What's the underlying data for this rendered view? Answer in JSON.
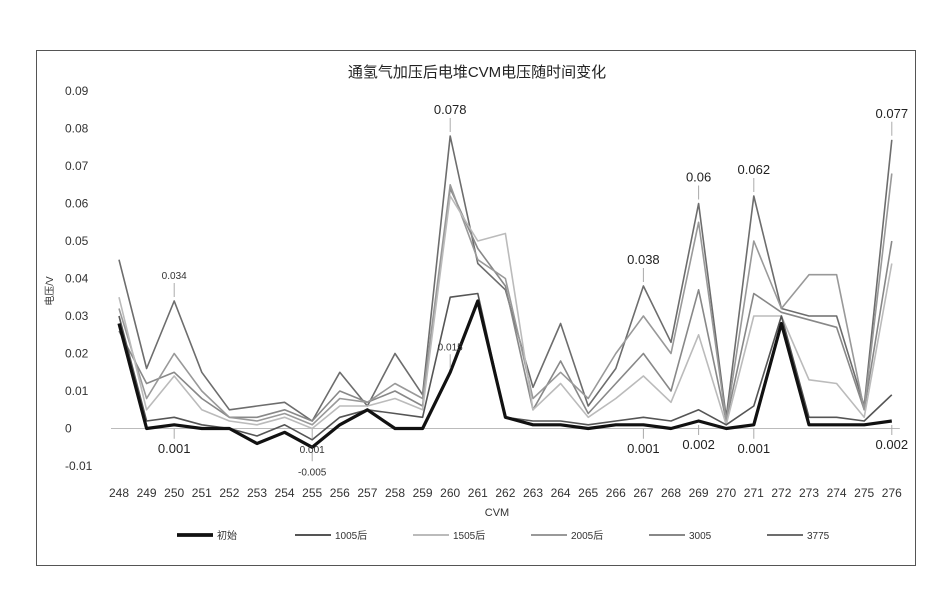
{
  "chart_data": {
    "type": "line",
    "title": "通氢气加压后电堆CVM电压随时间变化",
    "xlabel": "CVM",
    "ylabel": "电压/V",
    "ylim": [
      -0.01,
      0.09
    ],
    "yticks": [
      "-0.01",
      "0",
      "0.01",
      "0.02",
      "0.03",
      "0.04",
      "0.05",
      "0.06",
      "0.07",
      "0.08",
      "0.09"
    ],
    "categories": [
      "248",
      "249",
      "250",
      "251",
      "252",
      "253",
      "254",
      "255",
      "256",
      "257",
      "258",
      "259",
      "260",
      "261",
      "262",
      "263",
      "264",
      "265",
      "266",
      "267",
      "268",
      "269",
      "270",
      "271",
      "272",
      "273",
      "274",
      "275",
      "276"
    ],
    "grid": false,
    "legend_position": "bottom",
    "series": [
      {
        "name": "初始",
        "color": "#111111",
        "width": 3.2,
        "values": [
          0.028,
          0.0,
          0.001,
          0.0,
          0.0,
          -0.004,
          -0.001,
          -0.005,
          0.001,
          0.005,
          0.0,
          0.0,
          0.015,
          0.034,
          0.003,
          0.001,
          0.001,
          0.0,
          0.001,
          0.001,
          0.0,
          0.002,
          0.0,
          0.001,
          0.028,
          0.001,
          0.001,
          0.001,
          0.002
        ]
      },
      {
        "name": "1005后",
        "color": "#555555",
        "width": 1.6,
        "values": [
          0.03,
          0.002,
          0.003,
          0.001,
          0.0,
          -0.002,
          0.001,
          -0.003,
          0.003,
          0.005,
          0.004,
          0.003,
          0.035,
          0.036,
          0.003,
          0.002,
          0.002,
          0.001,
          0.002,
          0.003,
          0.002,
          0.005,
          0.001,
          0.006,
          0.03,
          0.003,
          0.003,
          0.002,
          0.009
        ]
      },
      {
        "name": "1505后",
        "color": "#bbbbbb",
        "width": 1.6,
        "values": [
          0.035,
          0.005,
          0.014,
          0.005,
          0.002,
          0.001,
          0.003,
          0.0,
          0.006,
          0.006,
          0.008,
          0.005,
          0.062,
          0.05,
          0.052,
          0.005,
          0.012,
          0.003,
          0.008,
          0.014,
          0.007,
          0.025,
          0.001,
          0.03,
          0.03,
          0.013,
          0.012,
          0.003,
          0.044
        ]
      },
      {
        "name": "2005后",
        "color": "#999999",
        "width": 1.6,
        "values": [
          0.032,
          0.008,
          0.02,
          0.01,
          0.003,
          0.002,
          0.004,
          0.001,
          0.008,
          0.007,
          0.012,
          0.008,
          0.065,
          0.045,
          0.04,
          0.008,
          0.015,
          0.008,
          0.02,
          0.03,
          0.02,
          0.055,
          0.002,
          0.05,
          0.032,
          0.041,
          0.041,
          0.005,
          0.068
        ]
      },
      {
        "name": "3005",
        "color": "#888888",
        "width": 1.6,
        "values": [
          0.026,
          0.012,
          0.015,
          0.008,
          0.003,
          0.003,
          0.005,
          0.002,
          0.01,
          0.007,
          0.01,
          0.006,
          0.064,
          0.048,
          0.038,
          0.005,
          0.018,
          0.004,
          0.012,
          0.02,
          0.01,
          0.037,
          0.002,
          0.036,
          0.031,
          0.029,
          0.027,
          0.005,
          0.05
        ]
      },
      {
        "name": "3775",
        "color": "#6d6d6d",
        "width": 1.6,
        "values": [
          0.045,
          0.016,
          0.034,
          0.015,
          0.005,
          0.006,
          0.007,
          0.002,
          0.015,
          0.006,
          0.02,
          0.009,
          0.078,
          0.044,
          0.037,
          0.011,
          0.028,
          0.006,
          0.016,
          0.038,
          0.023,
          0.06,
          0.003,
          0.062,
          0.032,
          0.03,
          0.03,
          0.006,
          0.077
        ]
      }
    ],
    "annotations": [
      {
        "label": "0.078",
        "x": "260",
        "y": 0.078,
        "size": "large"
      },
      {
        "label": "0.06",
        "x": "269",
        "y": 0.06,
        "size": "large"
      },
      {
        "label": "0.062",
        "x": "271",
        "y": 0.062,
        "size": "large"
      },
      {
        "label": "0.077",
        "x": "276",
        "y": 0.077,
        "size": "large"
      },
      {
        "label": "0.038",
        "x": "267",
        "y": 0.038,
        "size": "large"
      },
      {
        "label": "0.034",
        "x": "250",
        "y": 0.034,
        "size": "small"
      },
      {
        "label": "0.001",
        "x": "250",
        "y": 0.001,
        "size": "large"
      },
      {
        "label": "0.015",
        "x": "260",
        "y": 0.015,
        "size": "small"
      },
      {
        "label": "-0.005",
        "x": "255",
        "y": -0.005,
        "size": "small"
      },
      {
        "label": "0.001",
        "x": "255",
        "y": 0.001,
        "size": "small"
      },
      {
        "label": "0.001",
        "x": "267",
        "y": 0.001,
        "size": "large"
      },
      {
        "label": "0.002",
        "x": "269",
        "y": 0.002,
        "size": "large"
      },
      {
        "label": "0.001",
        "x": "271",
        "y": 0.001,
        "size": "large"
      },
      {
        "label": "0.002",
        "x": "276",
        "y": 0.002,
        "size": "large"
      }
    ]
  }
}
